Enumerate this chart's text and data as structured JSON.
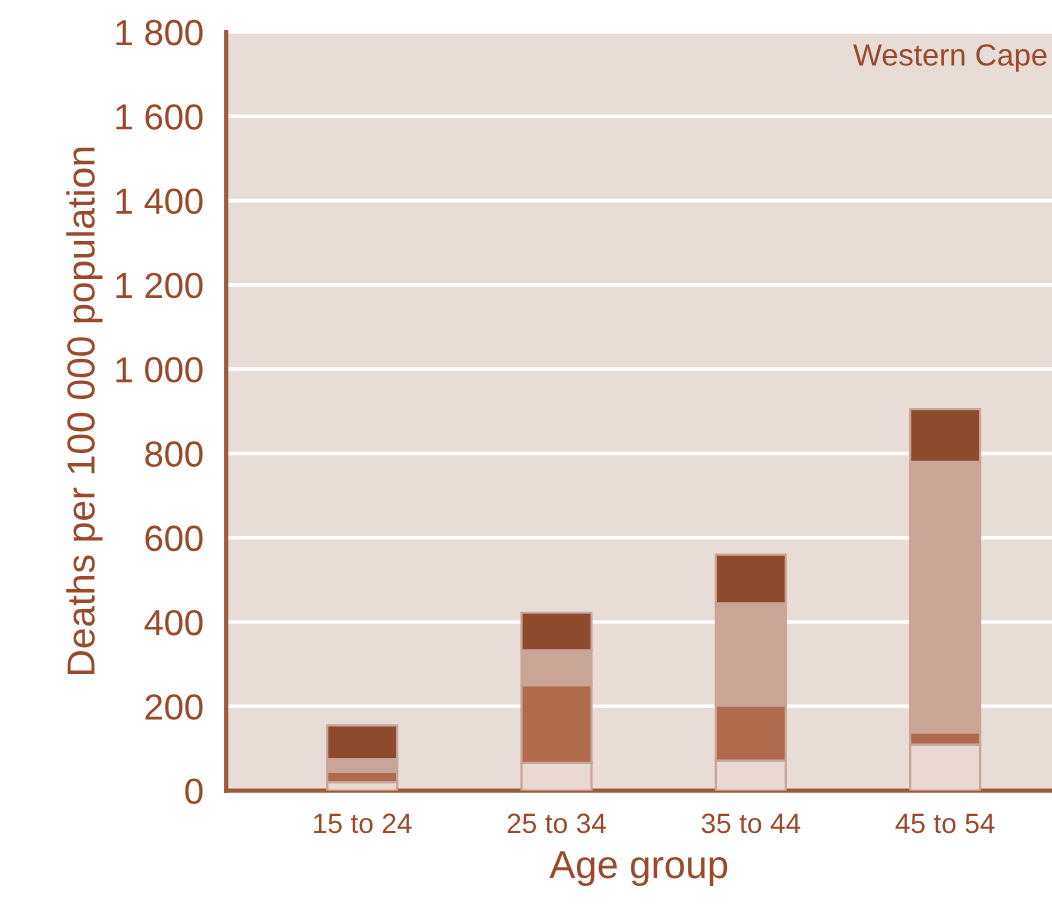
{
  "chart_data": {
    "type": "bar",
    "stacked": true,
    "xlabel": "Age group",
    "ylabel": "Deaths per 100 000 population",
    "annotations": [
      "Western Cape"
    ],
    "categories": [
      "15 to 24",
      "25 to 34",
      "35 to 44",
      "45 to 54"
    ],
    "series": [
      {
        "color": "#ead9d3",
        "values": [
          20,
          66,
          71,
          109
        ]
      },
      {
        "color": "#b06a4c",
        "values": [
          25,
          184,
          131,
          29
        ]
      },
      {
        "color": "#c9a597",
        "values": [
          30,
          83,
          242,
          642
        ]
      },
      {
        "color": "#8e4a2c",
        "values": [
          80,
          89,
          116,
          125
        ]
      }
    ],
    "ylim": [
      0,
      1800
    ],
    "yticks": [
      0,
      200,
      400,
      600,
      800,
      {
        "value": 1000,
        "label": "1 000"
      },
      {
        "value": 1200,
        "label": "1 200"
      },
      {
        "value": 1400,
        "label": "1 400"
      },
      {
        "value": 1600,
        "label": "1 600"
      },
      {
        "value": 1800,
        "label": "1 800"
      }
    ],
    "grid": "y"
  }
}
